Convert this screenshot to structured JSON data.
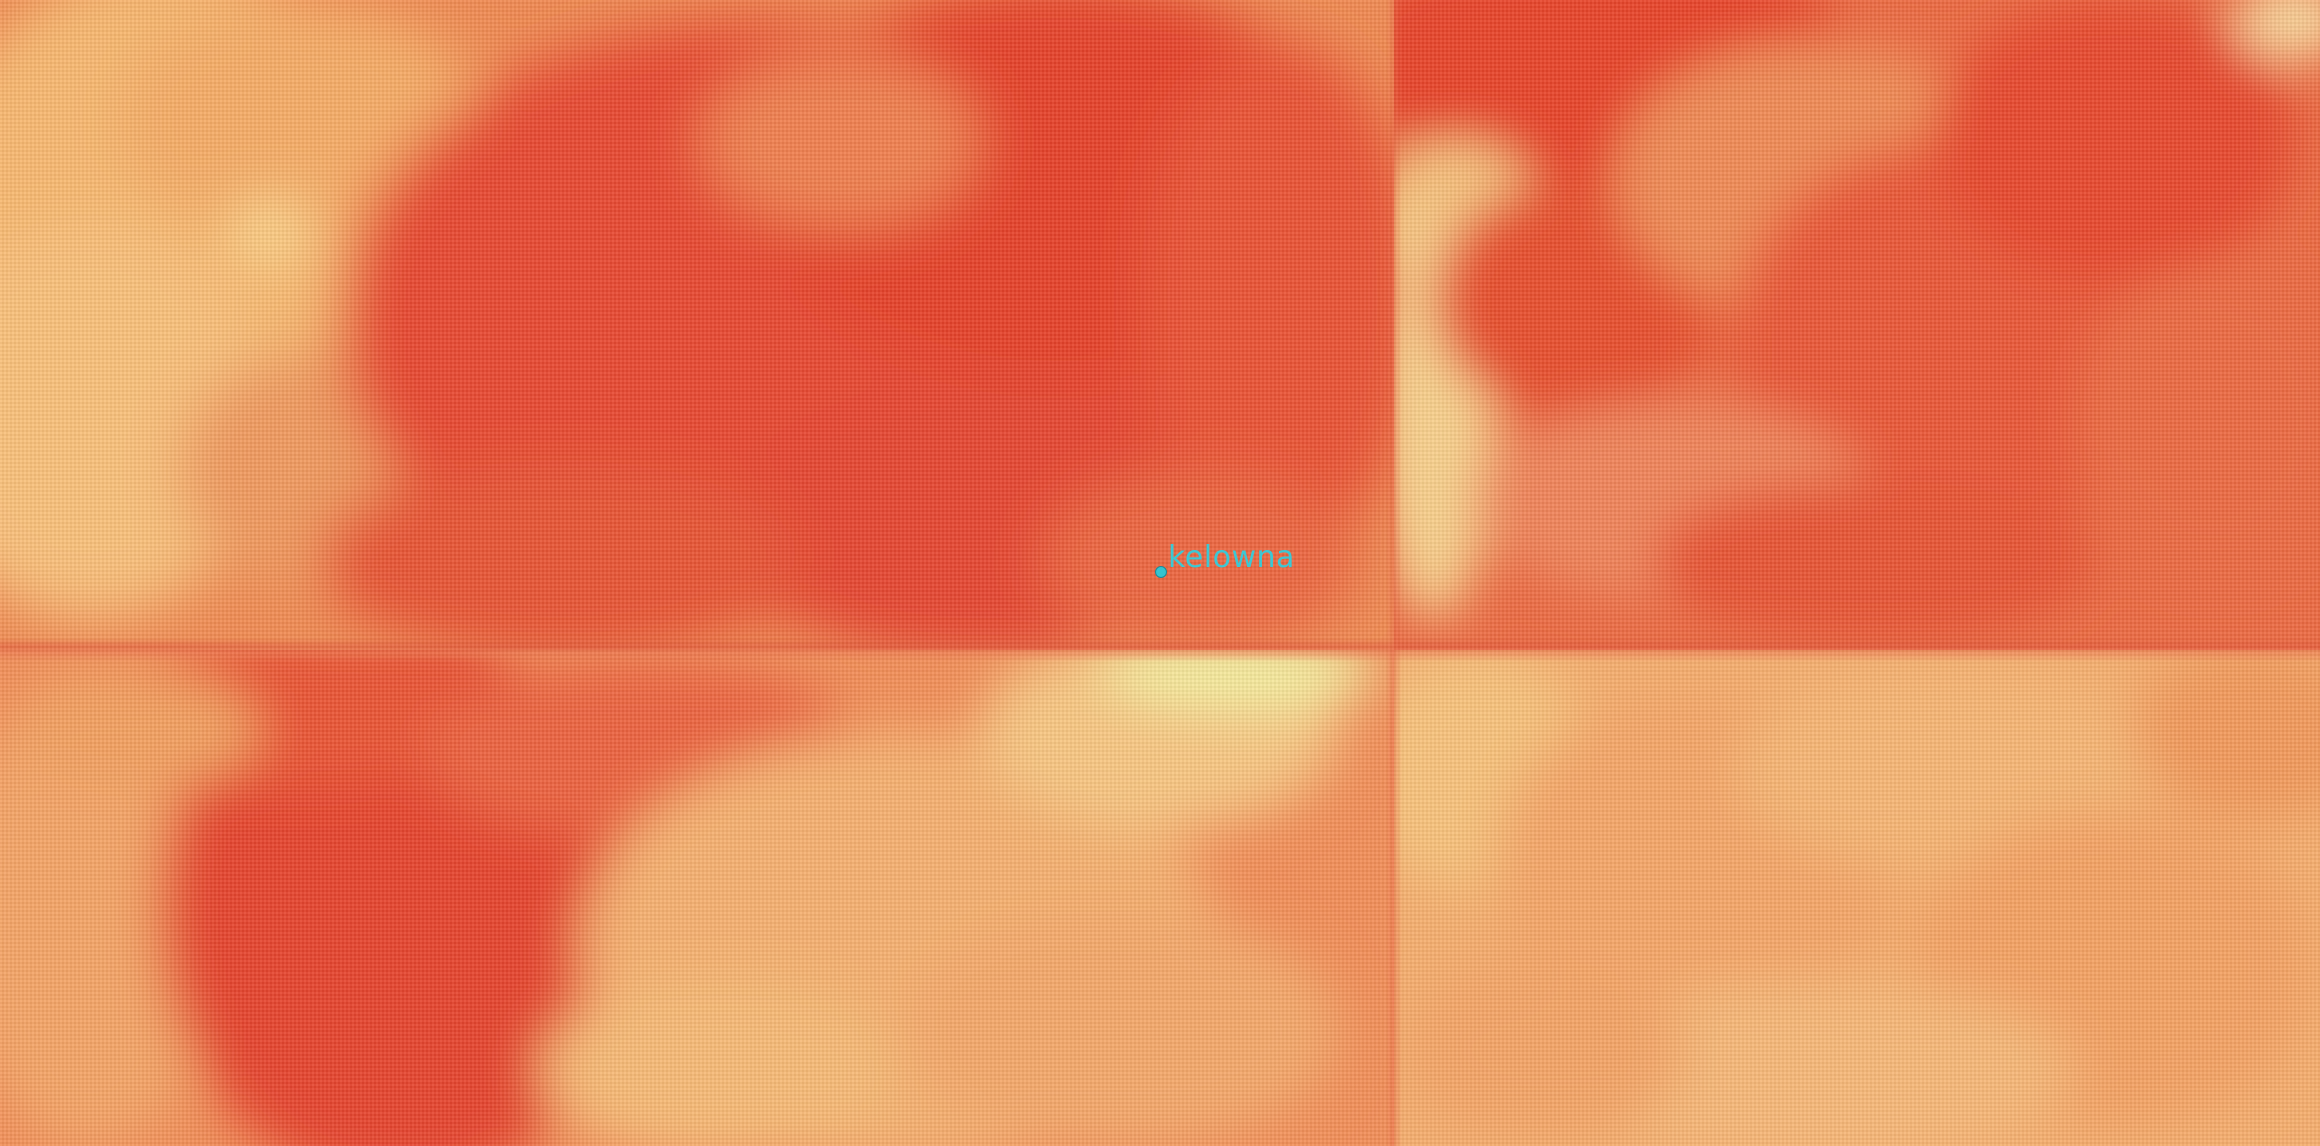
{
  "map": {
    "layer": "heat-raster",
    "palette": [
      "#e8402a",
      "#ec5a36",
      "#f07a48",
      "#f49a5a",
      "#f8b870",
      "#fbd08a",
      "#f4f0a0"
    ]
  },
  "places": [
    {
      "name": "kelowna",
      "color": "#3cc8d4",
      "marker_color": "#34c4d0"
    }
  ]
}
